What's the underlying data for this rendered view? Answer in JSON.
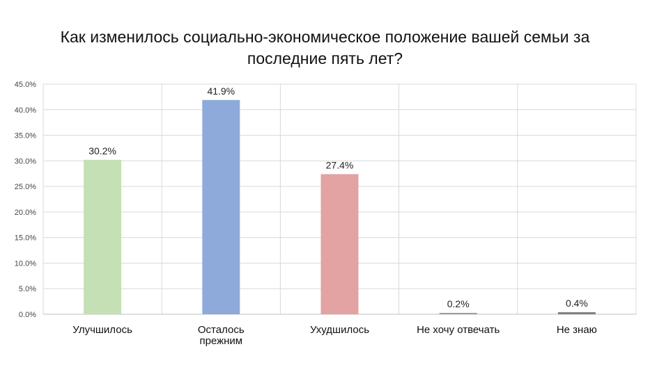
{
  "chart_data": {
    "type": "bar",
    "title_lines": [
      "Как изменилось социально-экономическое положение вашей семьи за",
      "последние пять лет?"
    ],
    "categories": [
      [
        "Улучшилось"
      ],
      [
        "Осталось",
        "прежним"
      ],
      [
        "Ухудшилось"
      ],
      [
        "Не хочу отвечать"
      ],
      [
        "Не знаю"
      ]
    ],
    "values": [
      30.2,
      41.9,
      27.4,
      0.2,
      0.4
    ],
    "data_labels": [
      "30.2%",
      "41.9%",
      "27.4%",
      "0.2%",
      "0.4%"
    ],
    "colors": [
      "#c5e0b4",
      "#8eaadb",
      "#e3a3a3",
      "#9e9e9e",
      "#7f7f7f"
    ],
    "ylim": [
      0,
      45
    ],
    "yticks": [
      "0.0%",
      "5.0%",
      "10.0%",
      "15.0%",
      "20.0%",
      "25.0%",
      "30.0%",
      "35.0%",
      "40.0%",
      "45.0%"
    ],
    "grid": true,
    "legend": "none"
  }
}
